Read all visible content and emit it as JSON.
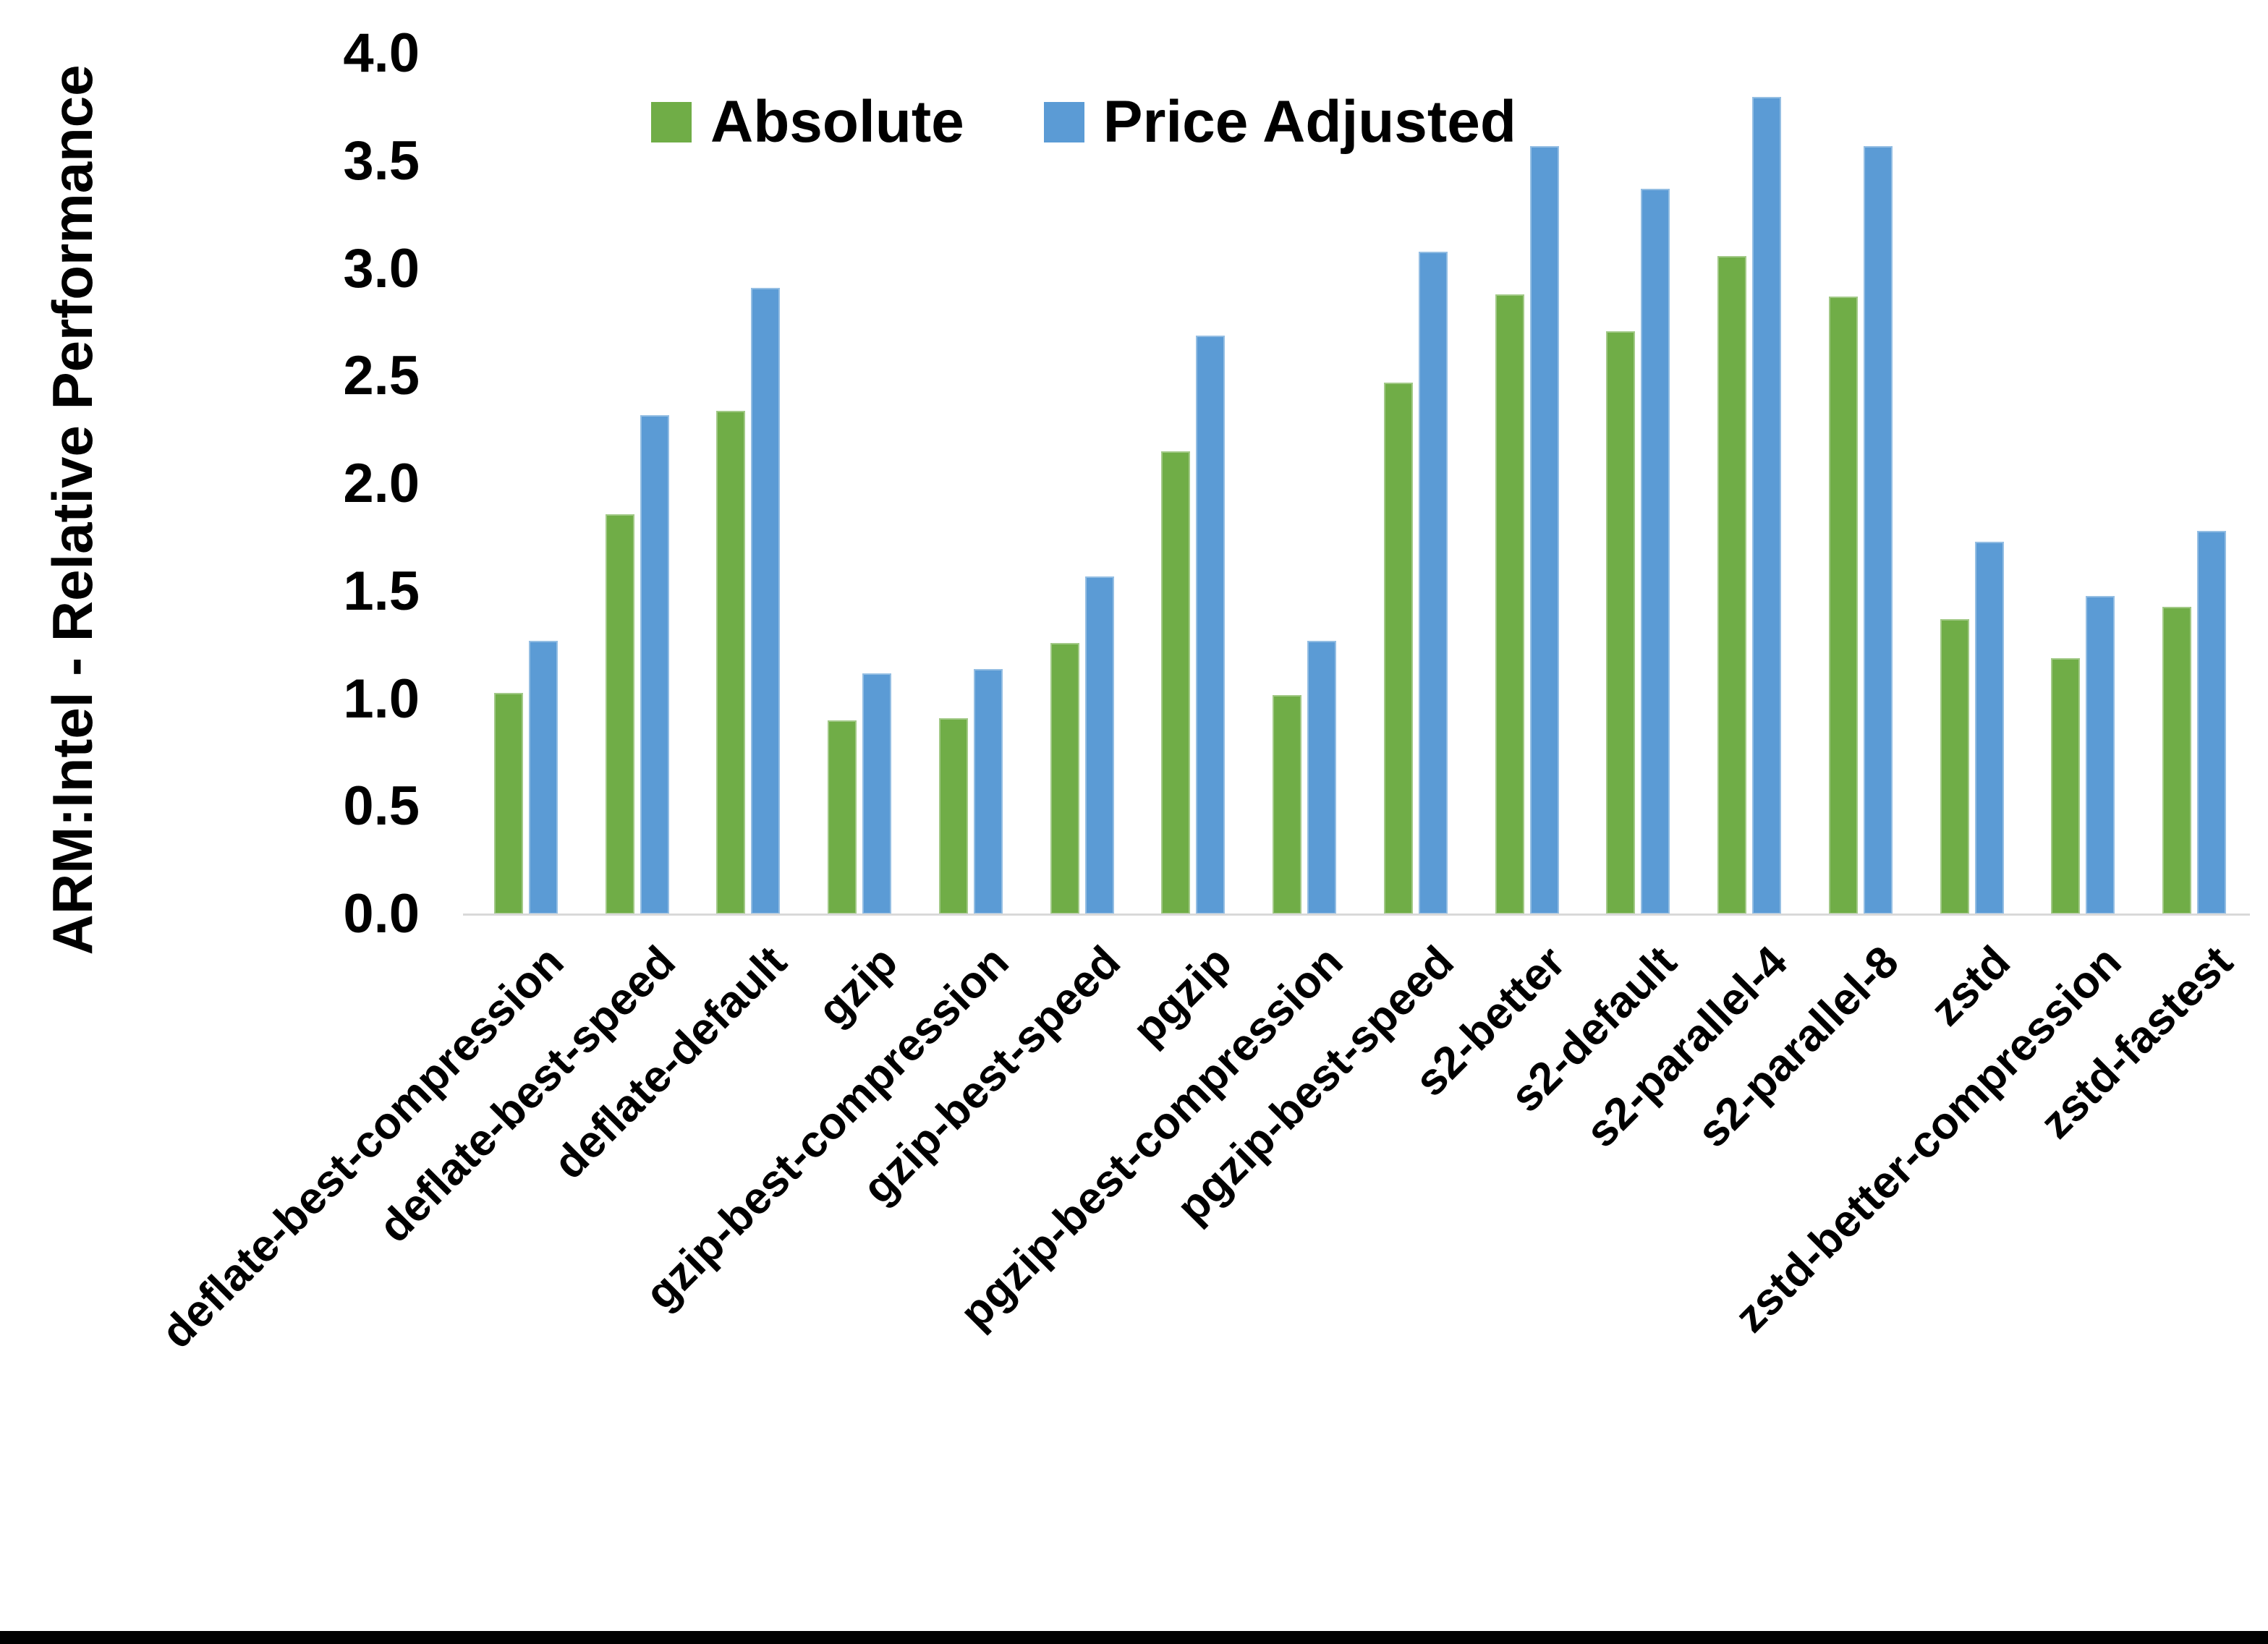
{
  "chart_data": {
    "type": "bar",
    "title": "",
    "xlabel": "",
    "ylabel": "ARM:Intel - Relative Performance",
    "ylim": [
      0.0,
      4.0
    ],
    "ytick_labels": [
      "0.0",
      "0.5",
      "1.0",
      "1.5",
      "2.0",
      "2.5",
      "3.0",
      "3.5",
      "4.0"
    ],
    "grid": false,
    "legend_position": "top-center",
    "categories": [
      "deflate-best-compression",
      "deflate-best-speed",
      "deflate-default",
      "gzip",
      "gzip-best-compression",
      "gzip-best-speed",
      "pgzip",
      "pgzip-best-compression",
      "pgzip-best-speed",
      "s2-better",
      "s2-default",
      "s2-parallel-4",
      "s2-parallel-8",
      "zstd",
      "zstd-better-compression",
      "zstd-fastest"
    ],
    "series": [
      {
        "name": "Absolute",
        "color": "#70AD47",
        "values": [
          1.03,
          1.86,
          2.34,
          0.9,
          0.91,
          1.26,
          2.15,
          1.02,
          2.47,
          2.88,
          2.71,
          3.06,
          2.87,
          1.37,
          1.19,
          1.43
        ]
      },
      {
        "name": "Price Adjusted",
        "color": "#5B9BD5",
        "values": [
          1.27,
          2.32,
          2.91,
          1.12,
          1.14,
          1.57,
          2.69,
          1.27,
          3.08,
          3.57,
          3.37,
          3.8,
          3.57,
          1.73,
          1.48,
          1.78
        ]
      }
    ]
  },
  "colors": {
    "background": "#FFFFFF",
    "axis_line": "#D9D9D9",
    "text": "#000000",
    "bottom_border": "#000000"
  }
}
